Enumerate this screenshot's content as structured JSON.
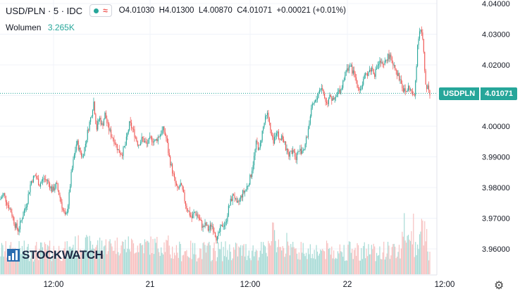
{
  "header": {
    "symbol": "USD/PLN · 5 · IDC",
    "indicator_icon": "wave-icon",
    "open": "O4.01030",
    "high": "H4.01300",
    "low": "L4.00870",
    "close": "C4.01071",
    "change": "+0.00021 (+0.01%)"
  },
  "volume": {
    "label": "Wolumen",
    "value": "3.265K"
  },
  "price_tag": {
    "name": "USDPLN",
    "value": "4.01071"
  },
  "logo": {
    "text": "STOCKWATCH"
  },
  "colors": {
    "up": "#26a69a",
    "down": "#ef5350",
    "vol_up": "#a8dbd6",
    "vol_down": "#f7c1c0"
  },
  "chart_data": {
    "type": "candlestick",
    "y_ticks": [
      "4.04000",
      "4.03000",
      "4.02000",
      "4.01000",
      "4.00000",
      "3.99000",
      "3.98000",
      "3.97000",
      "3.96000"
    ],
    "x_ticks": [
      "12:00",
      "21",
      "12:00",
      "22",
      "12:00"
    ],
    "ylim": [
      3.953,
      4.04
    ],
    "last_price": 4.01071,
    "path": [
      [
        0,
        3.976
      ],
      [
        5,
        3.978
      ],
      [
        10,
        3.975
      ],
      [
        16,
        3.972
      ],
      [
        21,
        3.968
      ],
      [
        26,
        3.966
      ],
      [
        31,
        3.97
      ],
      [
        38,
        3.975
      ],
      [
        44,
        3.982
      ],
      [
        50,
        3.984
      ],
      [
        56,
        3.981
      ],
      [
        62,
        3.983
      ],
      [
        68,
        3.982
      ],
      [
        74,
        3.979
      ],
      [
        80,
        3.981
      ],
      [
        86,
        3.976
      ],
      [
        90,
        3.972
      ],
      [
        93,
        3.97
      ],
      [
        97,
        3.975
      ],
      [
        101,
        3.984
      ],
      [
        105,
        3.99
      ],
      [
        109,
        3.995
      ],
      [
        113,
        3.992
      ],
      [
        117,
        3.99
      ],
      [
        121,
        3.994
      ],
      [
        125,
        3.999
      ],
      [
        129,
        4.003
      ],
      [
        133,
        4.008
      ],
      [
        137,
        3.999
      ],
      [
        141,
        4.003
      ],
      [
        145,
        4.0
      ],
      [
        149,
        4.004
      ],
      [
        153,
        4.0
      ],
      [
        158,
        3.997
      ],
      [
        163,
        3.995
      ],
      [
        168,
        3.992
      ],
      [
        173,
        3.991
      ],
      [
        178,
        3.994
      ],
      [
        184,
        4.001
      ],
      [
        190,
        3.998
      ],
      [
        196,
        3.994
      ],
      [
        202,
        3.996
      ],
      [
        208,
        3.994
      ],
      [
        214,
        3.996
      ],
      [
        220,
        3.995
      ],
      [
        226,
        3.997
      ],
      [
        232,
        3.999
      ],
      [
        236,
        3.996
      ],
      [
        240,
        3.99
      ],
      [
        244,
        3.986
      ],
      [
        248,
        3.982
      ],
      [
        252,
        3.979
      ],
      [
        256,
        3.981
      ],
      [
        260,
        3.978
      ],
      [
        264,
        3.974
      ],
      [
        268,
        3.972
      ],
      [
        272,
        3.97
      ],
      [
        276,
        3.972
      ],
      [
        280,
        3.971
      ],
      [
        284,
        3.969
      ],
      [
        288,
        3.967
      ],
      [
        292,
        3.968
      ],
      [
        296,
        3.966
      ],
      [
        300,
        3.968
      ],
      [
        304,
        3.966
      ],
      [
        308,
        3.963
      ],
      [
        312,
        3.966
      ],
      [
        316,
        3.968
      ],
      [
        320,
        3.968
      ],
      [
        324,
        3.973
      ],
      [
        328,
        3.976
      ],
      [
        332,
        3.978
      ],
      [
        336,
        3.974
      ],
      [
        340,
        3.976
      ],
      [
        344,
        3.978
      ],
      [
        348,
        3.979
      ],
      [
        352,
        3.981
      ],
      [
        356,
        3.984
      ],
      [
        360,
        3.989
      ],
      [
        364,
        3.995
      ],
      [
        368,
        3.992
      ],
      [
        372,
        3.998
      ],
      [
        376,
        4.002
      ],
      [
        380,
        4.004
      ],
      [
        384,
        3.998
      ],
      [
        388,
        3.994
      ],
      [
        392,
        3.999
      ],
      [
        396,
        3.996
      ],
      [
        400,
        3.997
      ],
      [
        404,
        3.994
      ],
      [
        408,
        3.991
      ],
      [
        412,
        3.991
      ],
      [
        416,
        3.993
      ],
      [
        420,
        3.99
      ],
      [
        424,
        3.992
      ],
      [
        428,
        3.992
      ],
      [
        432,
        3.993
      ],
      [
        436,
        3.997
      ],
      [
        440,
        4.003
      ],
      [
        444,
        4.007
      ],
      [
        448,
        4.008
      ],
      [
        452,
        4.011
      ],
      [
        456,
        4.013
      ],
      [
        460,
        4.01
      ],
      [
        464,
        4.007
      ],
      [
        468,
        4.011
      ],
      [
        472,
        4.008
      ],
      [
        476,
        4.009
      ],
      [
        480,
        4.011
      ],
      [
        484,
        4.012
      ],
      [
        488,
        4.016
      ],
      [
        492,
        4.018
      ],
      [
        496,
        4.02
      ],
      [
        500,
        4.018
      ],
      [
        504,
        4.016
      ],
      [
        508,
        4.013
      ],
      [
        512,
        4.012
      ],
      [
        516,
        4.015
      ],
      [
        520,
        4.017
      ],
      [
        524,
        4.018
      ],
      [
        528,
        4.019
      ],
      [
        532,
        4.017
      ],
      [
        536,
        4.02
      ],
      [
        540,
        4.021
      ],
      [
        544,
        4.019
      ],
      [
        548,
        4.022
      ],
      [
        552,
        4.023
      ],
      [
        556,
        4.021
      ],
      [
        560,
        4.02
      ],
      [
        564,
        4.017
      ],
      [
        568,
        4.015
      ],
      [
        572,
        4.012
      ],
      [
        576,
        4.011
      ],
      [
        580,
        4.013
      ],
      [
        584,
        4.011
      ],
      [
        588,
        4.009
      ],
      [
        590,
        4.016
      ],
      [
        593,
        4.028
      ],
      [
        596,
        4.032
      ],
      [
        599,
        4.03
      ],
      [
        601,
        4.025
      ],
      [
        603,
        4.016
      ],
      [
        605,
        4.012
      ],
      [
        607,
        4.014
      ],
      [
        609,
        4.011
      ],
      [
        611,
        4.0107
      ]
    ]
  }
}
